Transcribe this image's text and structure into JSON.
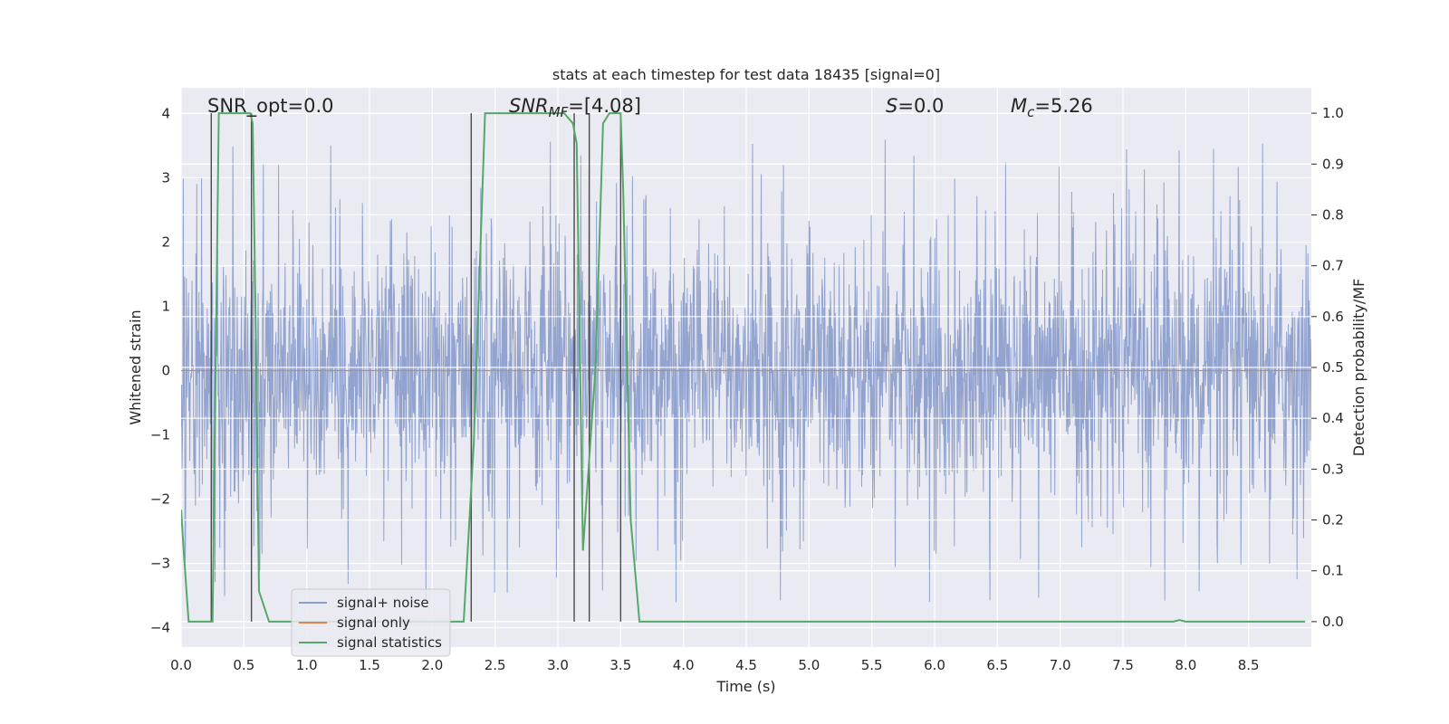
{
  "chart_data": {
    "type": "line",
    "title": "stats at each timestep for test data 18435 [signal=0]",
    "xlabel": "Time (s)",
    "ylabel": "Whitened strain",
    "y2label": "Detection probability/MF",
    "xlim": [
      0.0,
      9.0
    ],
    "ylim": [
      -4.3,
      4.4
    ],
    "y2lim": [
      -0.05,
      1.05
    ],
    "xticks": [
      "0.0",
      "0.5",
      "1.0",
      "1.5",
      "2.0",
      "2.5",
      "3.0",
      "3.5",
      "4.0",
      "4.5",
      "5.0",
      "5.5",
      "6.0",
      "6.5",
      "7.0",
      "7.5",
      "8.0",
      "8.5"
    ],
    "yticks": [
      "4",
      "3",
      "2",
      "1",
      "0",
      "−1",
      "−2",
      "−3",
      "−4"
    ],
    "y2ticks": [
      "1.0",
      "0.9",
      "0.8",
      "0.7",
      "0.6",
      "0.5",
      "0.4",
      "0.3",
      "0.2",
      "0.1",
      "0.0"
    ],
    "grid": true,
    "legend_position": "lower-left",
    "annotations": {
      "snr_opt": "SNR_opt=0.0",
      "snr_mf_base": "SNR",
      "snr_mf_sub": "MF",
      "snr_mf_value": "=[4.08]",
      "s_base": "S",
      "s_value": "=0.0",
      "mc_base": "M",
      "mc_sub": "c",
      "mc_value": "=5.26"
    },
    "series": [
      {
        "name": "signal+ noise",
        "axis": "left",
        "color": "#8c9fcb",
        "description_points": "dense whitened noise, mostly within [-1.5, 1.7], spikes to about +/-3.5",
        "x_range": [
          0.0,
          9.0
        ],
        "amplitude_core": 1.0,
        "amplitude_peak": 3.6
      },
      {
        "name": "signal only",
        "axis": "left",
        "color": "#dd8452",
        "x": [
          0.0,
          9.0
        ],
        "y": [
          0.0,
          0.0
        ]
      },
      {
        "name": "signal statistics",
        "axis": "right",
        "color": "#55a868",
        "x": [
          0.0,
          0.02,
          0.06,
          0.25,
          0.3,
          0.55,
          0.57,
          0.6,
          0.62,
          0.7,
          2.25,
          2.33,
          2.42,
          3.05,
          3.12,
          3.15,
          3.2,
          3.3,
          3.36,
          3.41,
          3.5,
          3.52,
          3.58,
          3.65,
          3.8,
          4.9,
          7.9,
          7.95,
          8.0,
          8.95
        ],
        "y": [
          0.22,
          0.14,
          0.0,
          0.0,
          1.0,
          1.0,
          0.98,
          0.48,
          0.06,
          0.0,
          0.0,
          0.35,
          1.0,
          1.0,
          0.98,
          0.94,
          0.14,
          0.5,
          0.98,
          1.0,
          1.0,
          0.85,
          0.2,
          0.0,
          0.0,
          0.0,
          0.0,
          0.003,
          0.0,
          0.0
        ]
      }
    ],
    "vertical_markers": [
      0.24,
      0.56,
      2.31,
      3.13,
      3.25,
      3.5
    ]
  }
}
